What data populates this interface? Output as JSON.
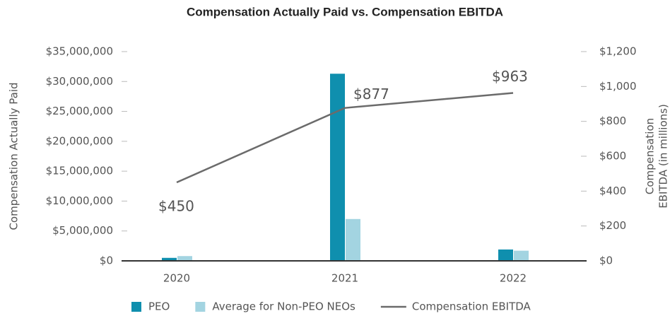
{
  "chart_data": {
    "type": "bar",
    "title": "Compensation Actually Paid vs. Compensation EBITDA",
    "y_label": "Compensation Actually Paid",
    "y2_label": [
      "Compensation",
      "EBITDA (in millions)"
    ],
    "categories": [
      "2020",
      "2021",
      "2022"
    ],
    "series": [
      {
        "name": "PEO",
        "type": "bar",
        "color": "#0f8fae",
        "values": [
          500000,
          31300000,
          1900000
        ]
      },
      {
        "name": "Average for Non-PEO NEOs",
        "type": "bar",
        "color": "#a3d4e1",
        "values": [
          800000,
          7000000,
          1700000
        ]
      },
      {
        "name": "Compensation EBITDA",
        "type": "line",
        "axis": "y2",
        "color": "#6b6b6b",
        "values": [
          450,
          877,
          963
        ],
        "value_labels": [
          "$450",
          "$877",
          "$963"
        ]
      }
    ],
    "ylim": [
      0,
      35000000
    ],
    "yticks": [
      {
        "value": 0,
        "label": "$0"
      },
      {
        "value": 5000000,
        "label": "$5,000,000"
      },
      {
        "value": 10000000,
        "label": "$10,000,000"
      },
      {
        "value": 15000000,
        "label": "$15,000,000"
      },
      {
        "value": 20000000,
        "label": "$20,000,000"
      },
      {
        "value": 25000000,
        "label": "$25,000,000"
      },
      {
        "value": 30000000,
        "label": "$30,000,000"
      },
      {
        "value": 35000000,
        "label": "$35,000,000"
      }
    ],
    "y2lim": [
      0,
      1200
    ],
    "y2ticks": [
      {
        "value": 0,
        "label": "$0"
      },
      {
        "value": 200,
        "label": "$200"
      },
      {
        "value": 400,
        "label": "$400"
      },
      {
        "value": 600,
        "label": "$600"
      },
      {
        "value": 800,
        "label": "$800"
      },
      {
        "value": 1000,
        "label": "$1,000"
      },
      {
        "value": 1200,
        "label": "$1,200"
      }
    ],
    "legend": "bottom",
    "grid": false
  }
}
